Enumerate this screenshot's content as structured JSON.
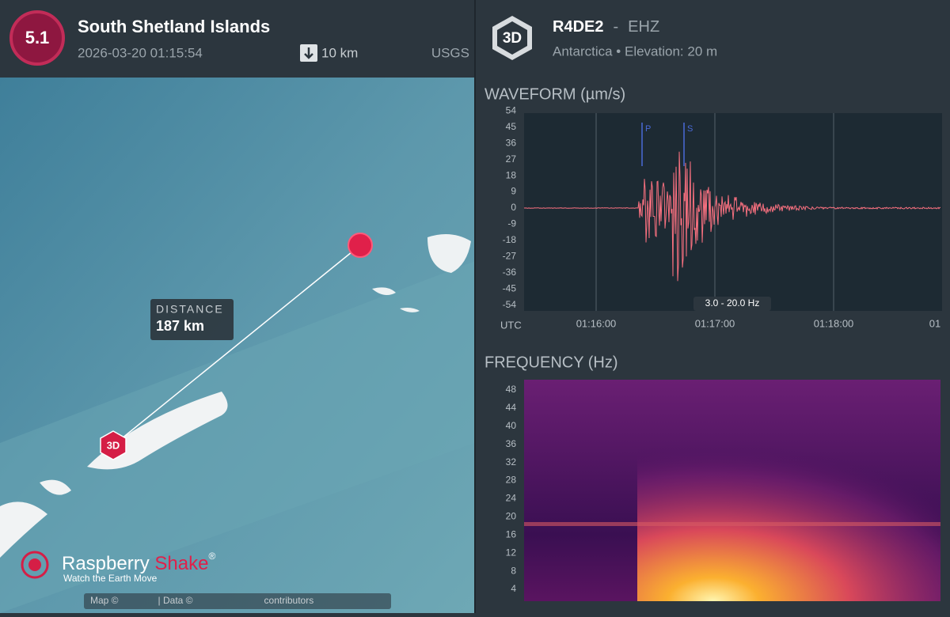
{
  "event": {
    "magnitude": "5.1",
    "region": "South Shetland Islands",
    "datetime": "2026-03-20 01:15:54",
    "depth": "10 km",
    "source": "USGS"
  },
  "station": {
    "badge": "3D",
    "code": "R4DE2",
    "separator": "-",
    "channel": "EHZ",
    "location": "Antarctica • Elevation: 20 m"
  },
  "map": {
    "distance_label": "DISTANCE",
    "distance": "187 km",
    "station_marker": "3D",
    "brand": "Raspberry",
    "brand_accent": "Shake",
    "registered": "®",
    "tagline": "Watch the Earth Move",
    "attribution_map": "Map ©",
    "attribution_data": "| Data ©",
    "attribution_contributors": "contributors"
  },
  "waveform": {
    "title": "WAVEFORM (µm/s)",
    "yticks": [
      54,
      45,
      36,
      27,
      18,
      9,
      0,
      -9,
      -18,
      -27,
      -36,
      -45,
      -54
    ],
    "x_axis_label": "UTC",
    "xticks": [
      "01:16:00",
      "01:17:00",
      "01:18:00",
      "01"
    ],
    "filter": "3.0 - 20.0 Hz",
    "phases": [
      "P",
      "S"
    ]
  },
  "spectrogram": {
    "title": "FREQUENCY (Hz)",
    "yticks": [
      48,
      44,
      40,
      36,
      32,
      28,
      24,
      20,
      16,
      12,
      8,
      4
    ]
  }
}
